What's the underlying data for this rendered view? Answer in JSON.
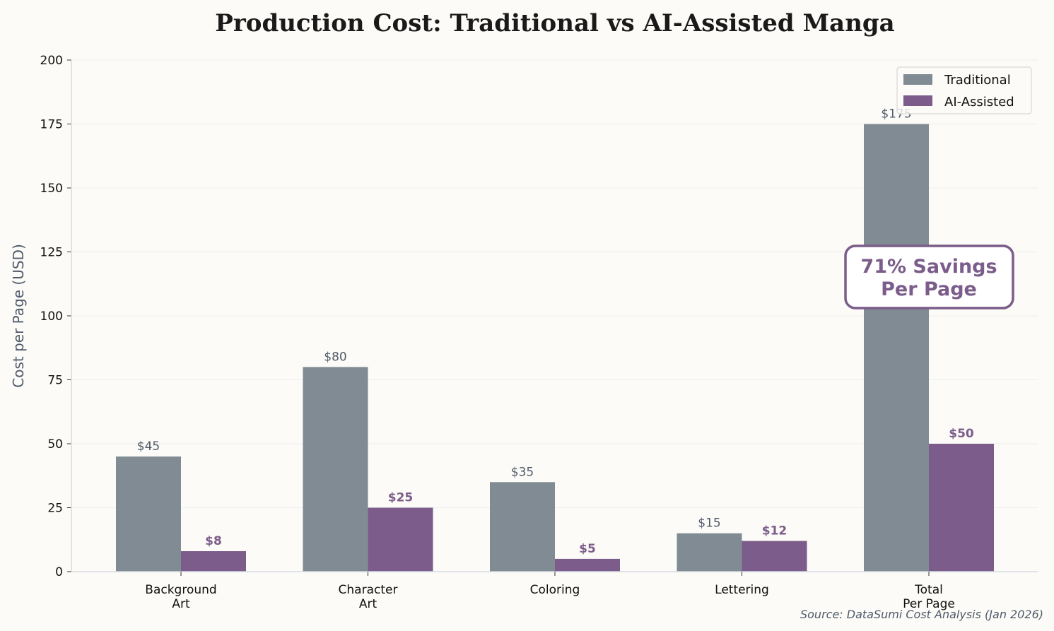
{
  "chart_data": {
    "type": "bar",
    "title": "Production Cost: Traditional vs AI-Assisted Manga",
    "xlabel": "",
    "ylabel": "Cost per Page (USD)",
    "ylim": [
      0,
      200
    ],
    "yticks": [
      0,
      25,
      50,
      75,
      100,
      125,
      150,
      175,
      200
    ],
    "categories": [
      [
        "Background",
        "Art"
      ],
      [
        "Character",
        "Art"
      ],
      [
        "Coloring"
      ],
      [
        "Lettering"
      ],
      [
        "Total",
        "Per Page"
      ]
    ],
    "series": [
      {
        "name": "Traditional",
        "values": [
          45,
          80,
          35,
          15,
          175
        ],
        "labels": [
          "$45",
          "$80",
          "$35",
          "$15",
          "$175"
        ],
        "color": "#818b94"
      },
      {
        "name": "AI-Assisted",
        "values": [
          8,
          25,
          5,
          12,
          50
        ],
        "labels": [
          "$8",
          "$25",
          "$5",
          "$12",
          "$50"
        ],
        "color": "#7b5c8a"
      }
    ],
    "annotation": [
      "71% Savings",
      "Per Page"
    ],
    "legend": "top-right",
    "grid": "horizontal",
    "source": "Source: DataSumi Cost Analysis (Jan 2026)"
  }
}
